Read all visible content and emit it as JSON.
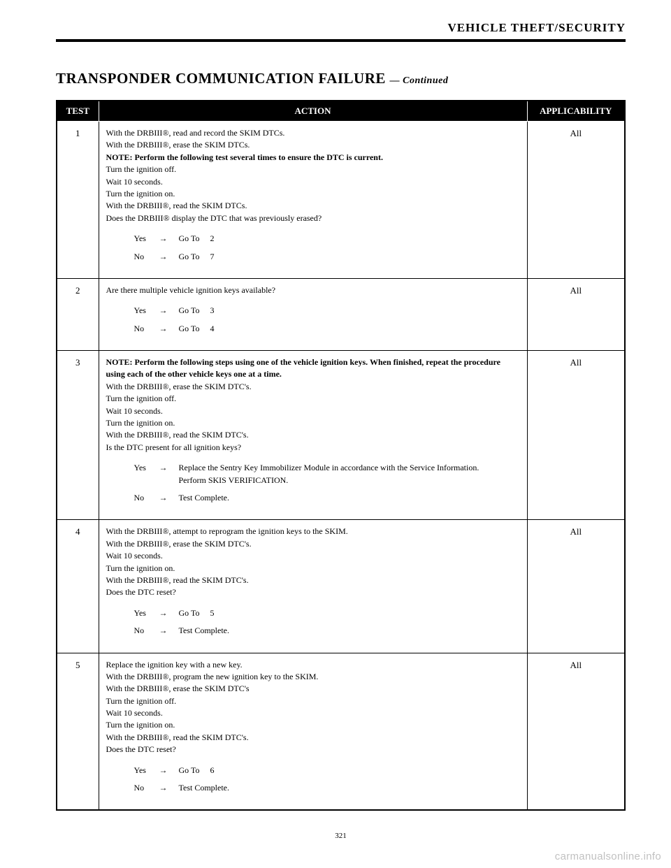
{
  "header": {
    "section": "VEHICLE THEFT/SECURITY"
  },
  "title": {
    "main": "TRANSPONDER COMMUNICATION FAILURE",
    "suffix": "— Continued"
  },
  "columns": {
    "c1": "TEST",
    "c2": "ACTION",
    "c3": "APPLICABILITY"
  },
  "rows": [
    {
      "num": "1",
      "applic": "All",
      "lines": [
        "With the DRBIII®, read and record the SKIM DTCs.",
        "With the DRBIII®, erase the SKIM DTCs.",
        "<b>NOTE: Perform the following test several times to ensure the DTC is current.</b>",
        "Turn the ignition off.",
        "Wait 10 seconds.",
        "Turn the ignition on.",
        "With the DRBIII®, read the SKIM DTCs.",
        "Does the DRBIII® display the DTC that was previously erased?"
      ],
      "yes": "Go To  2",
      "no": "Go To  7"
    },
    {
      "num": "2",
      "applic": "All",
      "lines": [
        "Are there multiple vehicle ignition keys available?"
      ],
      "yes": "Go To  3",
      "no": "Go To  4"
    },
    {
      "num": "3",
      "applic": "All",
      "lines": [
        "<b>NOTE: Perform the following steps using one of the vehicle ignition keys. When finished, repeat the procedure using each of the other vehicle keys one at a time.</b>",
        "With the DRBIII®, erase the SKIM DTC's.",
        "Turn the ignition off.",
        "Wait 10 seconds.",
        "Turn the ignition on.",
        "With the DRBIII®, read the SKIM DTC's.",
        "Is the DTC present for all ignition keys?"
      ],
      "yes": "Replace the Sentry Key Immobilizer Module in accordance with the Service Information.<br>Perform SKIS VERIFICATION.",
      "no": "Test Complete."
    },
    {
      "num": "4",
      "applic": "All",
      "lines": [
        "With the DRBIII®, attempt to reprogram the ignition keys to the SKIM.",
        "With the DRBIII®, erase the SKIM DTC's.",
        "Wait 10 seconds.",
        "Turn the ignition on.",
        "With the DRBIII®, read the SKIM DTC's.",
        "Does the DTC reset?"
      ],
      "yes": "Go To  5",
      "no": "Test Complete."
    },
    {
      "num": "5",
      "applic": "All",
      "lines": [
        "Replace the ignition key with a new key.",
        "With the DRBIII®, program the new ignition key to the SKIM.",
        "With the DRBIII®, erase the SKIM DTC's",
        "Turn the ignition off.",
        "Wait 10 seconds.",
        "Turn the ignition on.",
        "With the DRBIII®, read the SKIM DTC's.",
        "Does the DTC reset?"
      ],
      "yes": "Go To  6",
      "no": "Test Complete."
    }
  ],
  "yn": {
    "yes": "Yes",
    "no": "No",
    "arrow": "→"
  },
  "pagenum": "321",
  "watermark": "carmanualsonline.info"
}
